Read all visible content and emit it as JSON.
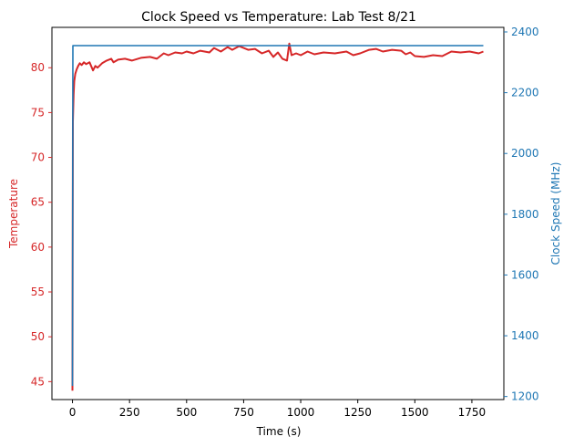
{
  "chart_data": {
    "type": "line",
    "title": "Clock Speed vs Temperature: Lab Test 8/21",
    "xlabel": "Time (s)",
    "ylabel_left": "Temperature",
    "ylabel_right": "Clock Speed (MHz)",
    "xlim": [
      -90,
      1890
    ],
    "ylim_left": [
      43,
      84.5
    ],
    "ylim_right": [
      1190,
      2415
    ],
    "x_ticks": [
      0,
      250,
      500,
      750,
      1000,
      1250,
      1500,
      1750
    ],
    "y_ticks_left": [
      45,
      50,
      55,
      60,
      65,
      70,
      75,
      80
    ],
    "y_ticks_right": [
      1200,
      1400,
      1600,
      1800,
      2000,
      2200,
      2400
    ],
    "grid": false,
    "legend": "none",
    "colors": {
      "temperature": "#d62728",
      "clock": "#1f77b4",
      "axes": "#000000"
    },
    "series": [
      {
        "axis": "left",
        "color": "#d62728",
        "x": [
          0,
          2,
          5,
          8,
          12,
          18,
          25,
          32,
          40,
          50,
          60,
          75,
          90,
          100,
          110,
          130,
          150,
          170,
          180,
          200,
          230,
          260,
          300,
          340,
          370,
          400,
          420,
          450,
          480,
          500,
          530,
          560,
          600,
          620,
          650,
          680,
          700,
          730,
          750,
          770,
          800,
          830,
          860,
          880,
          900,
          920,
          940,
          950,
          960,
          980,
          1000,
          1030,
          1060,
          1100,
          1150,
          1200,
          1230,
          1260,
          1300,
          1330,
          1360,
          1400,
          1440,
          1460,
          1480,
          1500,
          1540,
          1580,
          1620,
          1660,
          1700,
          1740,
          1780,
          1800
        ],
        "y": [
          44,
          74,
          77,
          78.5,
          79.3,
          79.8,
          80.2,
          80.5,
          80.3,
          80.6,
          80.4,
          80.6,
          79.7,
          80.2,
          80.0,
          80.5,
          80.8,
          81.0,
          80.6,
          80.9,
          81.0,
          80.8,
          81.1,
          81.2,
          81.0,
          81.6,
          81.4,
          81.7,
          81.6,
          81.8,
          81.6,
          81.9,
          81.7,
          82.2,
          81.8,
          82.3,
          82.0,
          82.4,
          82.2,
          82.0,
          82.1,
          81.6,
          81.9,
          81.2,
          81.7,
          81.0,
          80.8,
          82.7,
          81.4,
          81.6,
          81.4,
          81.8,
          81.5,
          81.7,
          81.6,
          81.8,
          81.4,
          81.6,
          82.0,
          82.1,
          81.8,
          82.0,
          81.9,
          81.5,
          81.7,
          81.3,
          81.2,
          81.4,
          81.3,
          81.8,
          81.7,
          81.8,
          81.6,
          81.8
        ]
      },
      {
        "axis": "right",
        "color": "#1f77b4",
        "x": [
          0,
          2,
          4,
          1800
        ],
        "y": [
          1235,
          2355,
          2355,
          2355
        ]
      }
    ]
  }
}
